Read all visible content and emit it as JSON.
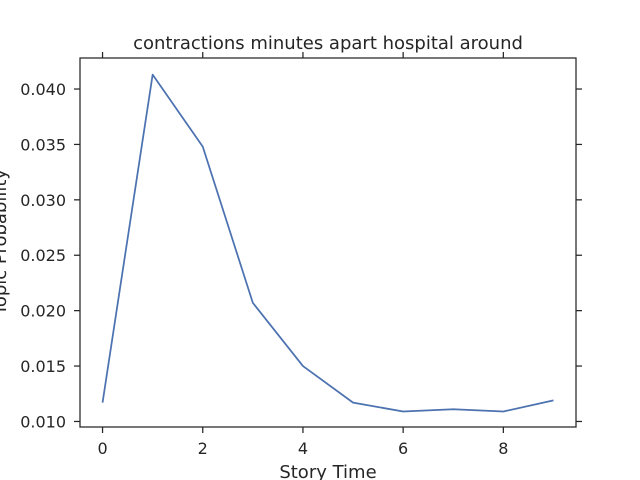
{
  "chart_data": {
    "type": "line",
    "title": "contractions minutes apart hospital around",
    "xlabel": "Story Time",
    "ylabel": "Topic Probability",
    "x": [
      0,
      1,
      2,
      3,
      4,
      5,
      6,
      7,
      8,
      9
    ],
    "series": [
      {
        "values": [
          0.0117,
          0.0413,
          0.0348,
          0.0207,
          0.015,
          0.0117,
          0.0109,
          0.0111,
          0.0109,
          0.0119
        ],
        "color": "#4c72b0"
      }
    ],
    "xlim": [
      -0.45,
      9.45
    ],
    "ylim": [
      0.0095,
      0.0428
    ],
    "xticks": [
      0,
      2,
      4,
      6,
      8
    ],
    "yticks": [
      0.01,
      0.015,
      0.02,
      0.025,
      0.03,
      0.035,
      0.04
    ],
    "xtick_labels": [
      "0",
      "2",
      "4",
      "6",
      "8"
    ],
    "ytick_labels": [
      "0.010",
      "0.015",
      "0.020",
      "0.025",
      "0.030",
      "0.035",
      "0.040"
    ],
    "grid": false,
    "legend": "none"
  }
}
